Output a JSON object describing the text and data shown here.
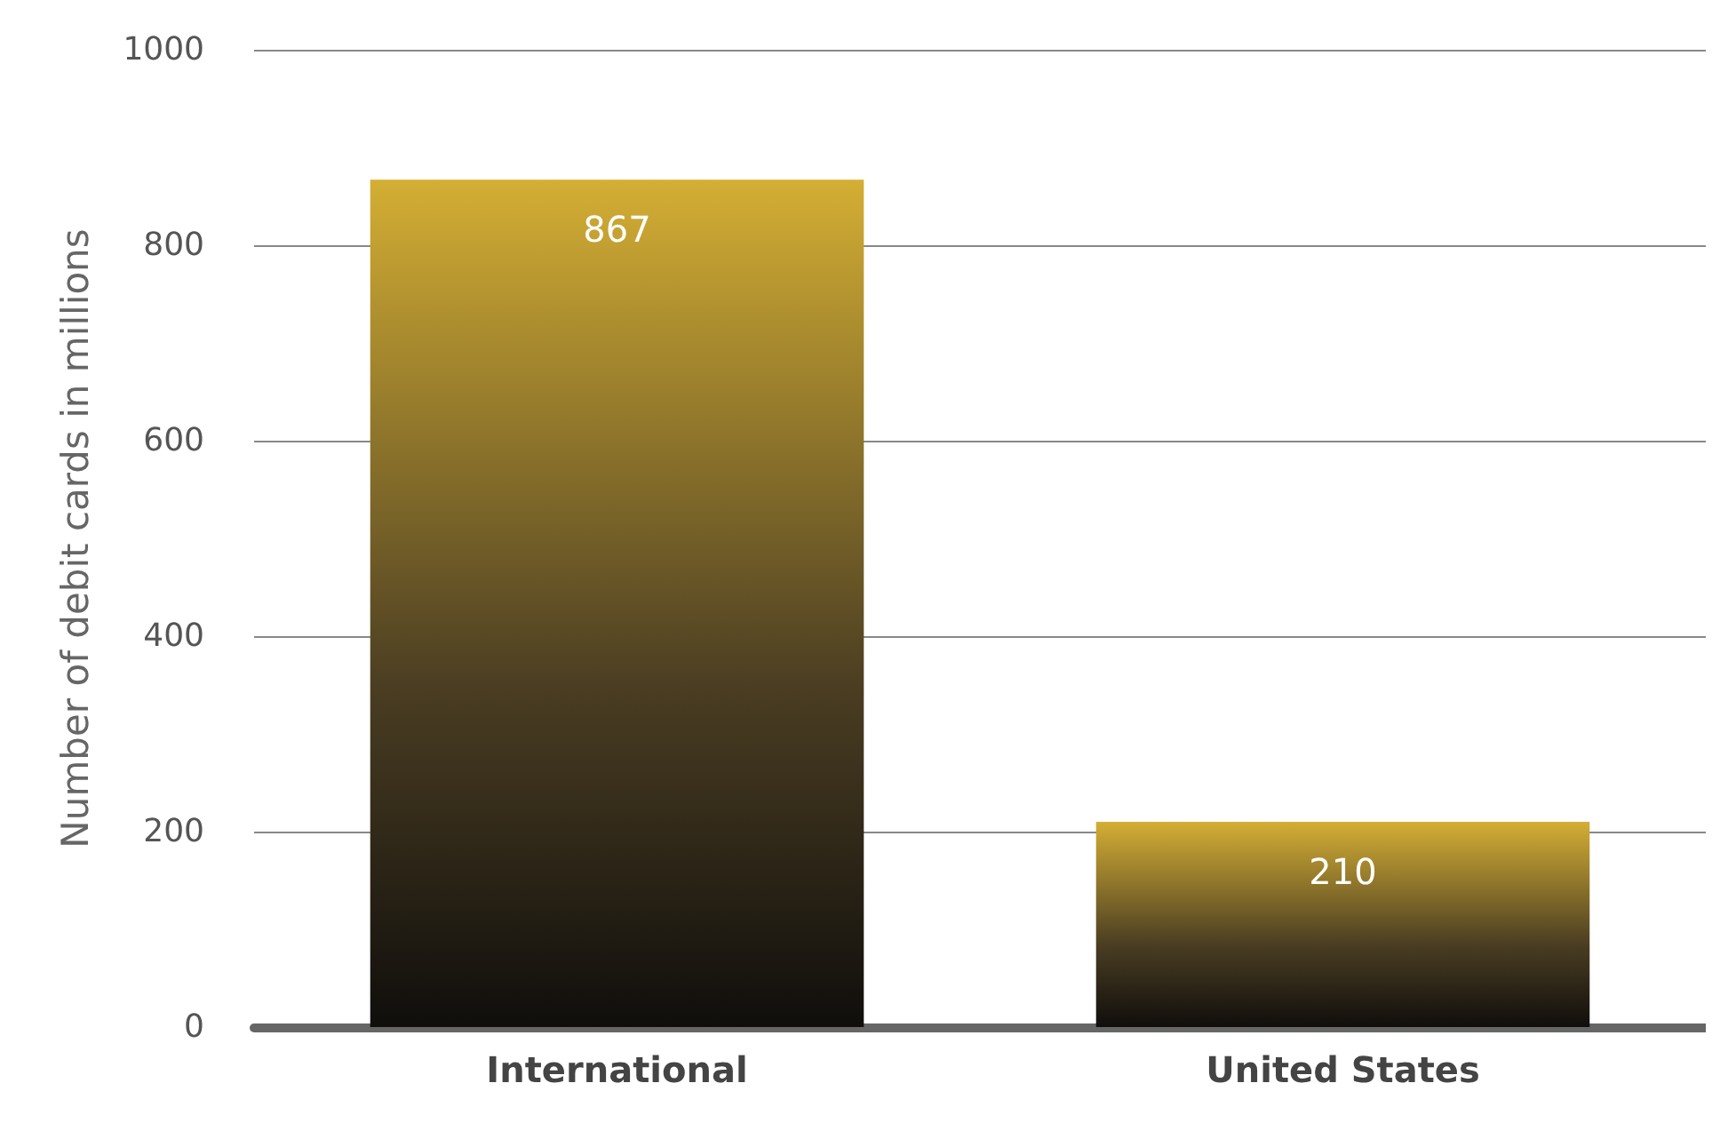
{
  "chart_data": {
    "type": "bar",
    "ylabel": "Number of debit cards in millions",
    "categories": [
      "International",
      "United States"
    ],
    "values": [
      867,
      210
    ],
    "color": "#d4ae34",
    "ylim": [
      0,
      1000
    ],
    "yticks": [
      0,
      200,
      400,
      600,
      800,
      1000
    ],
    "grid": "y",
    "data_labels": true
  }
}
